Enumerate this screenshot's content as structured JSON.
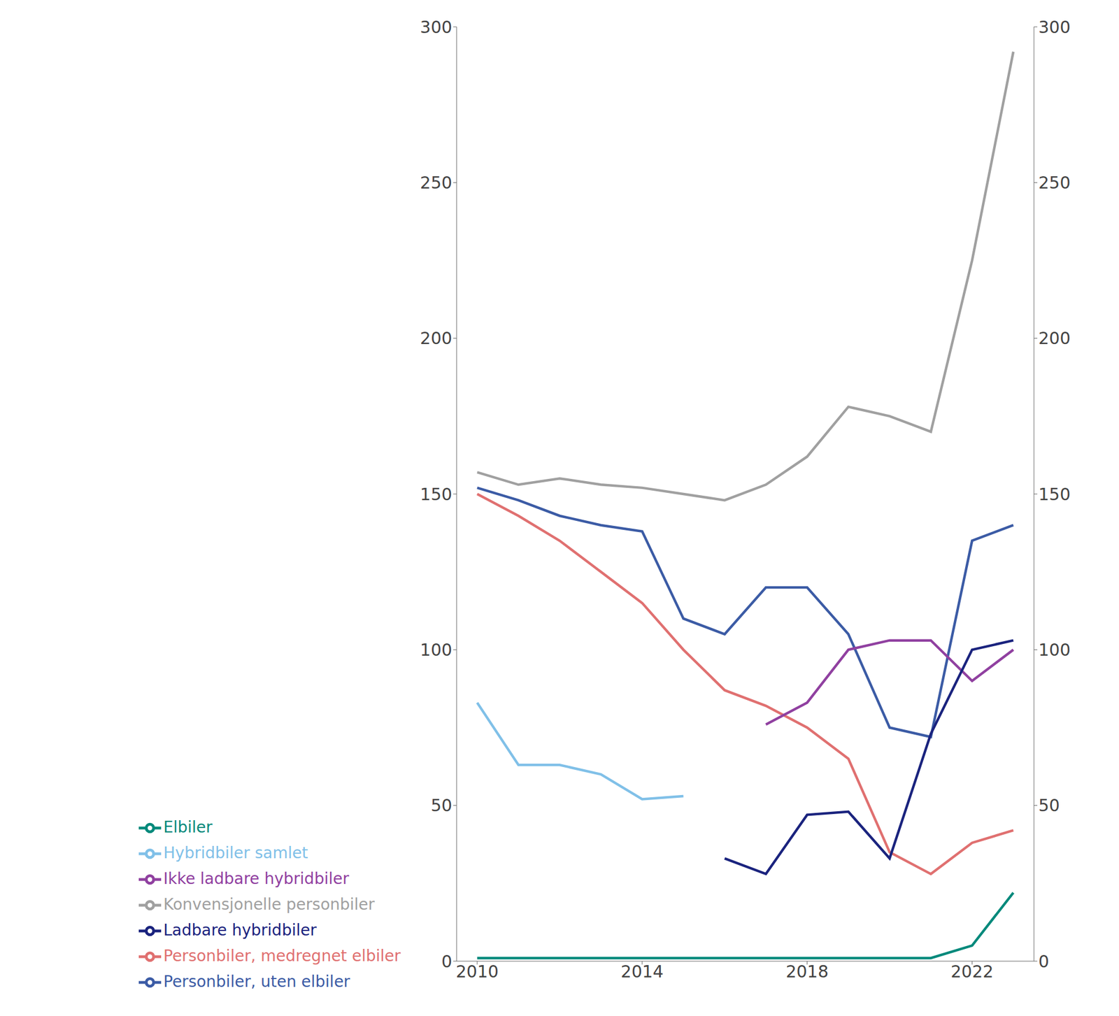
{
  "chart_data": {
    "type": "line",
    "x": [
      2010,
      2011,
      2012,
      2013,
      2014,
      2015,
      2016,
      2017,
      2018,
      2019,
      2020,
      2021,
      2022,
      2023
    ],
    "series": [
      {
        "name": "Personbiler, uten elbiler",
        "color": "#3B5BA5",
        "values": [
          152,
          148,
          143,
          140,
          138,
          110,
          105,
          120,
          120,
          105,
          75,
          72,
          135,
          140
        ]
      },
      {
        "name": "Personbiler, medregnet elbiler",
        "color": "#E07070",
        "values": [
          150,
          143,
          135,
          125,
          115,
          100,
          87,
          82,
          75,
          65,
          35,
          28,
          38,
          42
        ]
      },
      {
        "name": "Konvensjonelle personbiler",
        "color": "#A0A0A0",
        "values": [
          157,
          153,
          155,
          153,
          152,
          150,
          148,
          153,
          162,
          178,
          175,
          170,
          225,
          292
        ]
      },
      {
        "name": "Hybridbiler samlet",
        "color": "#80C0E8",
        "values": [
          83,
          63,
          63,
          60,
          52,
          53,
          null,
          null,
          null,
          null,
          null,
          null,
          null,
          null
        ]
      },
      {
        "name": "Ikke ladbare hybridbiler",
        "color": "#9040A0",
        "values": [
          null,
          null,
          null,
          null,
          null,
          null,
          null,
          76,
          83,
          100,
          103,
          103,
          90,
          100
        ]
      },
      {
        "name": "Ladbare hybridbiler",
        "color": "#1A237E",
        "values": [
          null,
          null,
          null,
          null,
          null,
          null,
          33,
          28,
          47,
          48,
          33,
          73,
          100,
          103
        ]
      },
      {
        "name": "Elbiler",
        "color": "#00897B",
        "values": [
          1,
          1,
          1,
          1,
          1,
          1,
          1,
          1,
          1,
          1,
          1,
          1,
          5,
          22
        ]
      }
    ],
    "xlim": [
      2009.5,
      2023.5
    ],
    "xticks": [
      2010,
      2014,
      2018,
      2022
    ],
    "ylim": [
      0,
      300
    ],
    "yticks": [
      0,
      50,
      100,
      150,
      200,
      250,
      300
    ],
    "y2lim": [
      0,
      300
    ],
    "y2ticks": [
      0,
      50,
      100,
      150,
      200,
      250,
      300
    ],
    "grid": false,
    "legend": "bottom"
  }
}
